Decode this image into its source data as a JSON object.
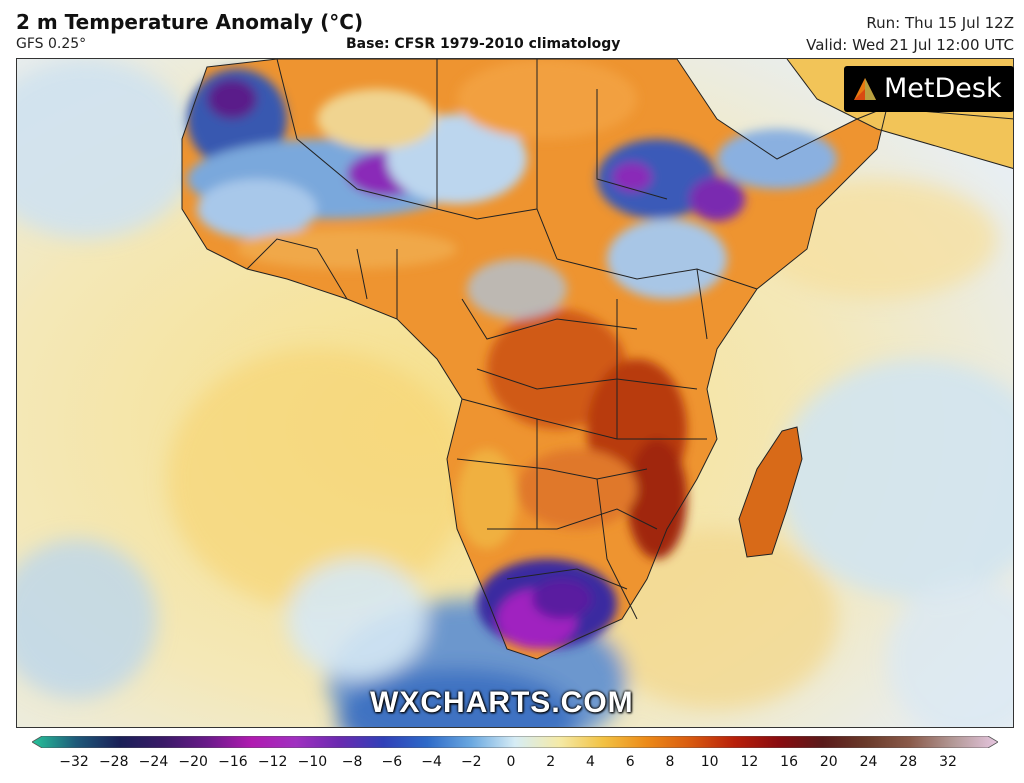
{
  "header": {
    "title": "2 m Temperature Anomaly (°C)",
    "model": "GFS 0.25°",
    "base": "Base: CFSR 1979-2010 climatology",
    "run": "Run: Thu 15 Jul 12Z",
    "valid": "Valid: Wed 21 Jul 12:00 UTC"
  },
  "branding": {
    "logo_text": "MetDesk",
    "watermark": "WXCHARTS.COM"
  },
  "colorbar": {
    "ticks": [
      "−32",
      "−28",
      "−24",
      "−20",
      "−16",
      "−12",
      "−10",
      "−8",
      "−6",
      "−4",
      "−2",
      "0",
      "2",
      "4",
      "6",
      "8",
      "10",
      "12",
      "16",
      "20",
      "24",
      "28",
      "32"
    ],
    "colors": [
      "#27c49a",
      "#1e5a7a",
      "#1a2058",
      "#3a1a68",
      "#6a1a8a",
      "#b01ab0",
      "#a030c0",
      "#6a2ab0",
      "#3040b8",
      "#2e6ac8",
      "#6aa8e0",
      "#d6ecf5",
      "#f4eaa8",
      "#f2c244",
      "#ec8a18",
      "#d85a10",
      "#b8200a",
      "#8a0c10",
      "#5a1a1a",
      "#6a3a2a",
      "#8a5a4a",
      "#b49a98",
      "#e6c6e0"
    ]
  },
  "map": {
    "ocean_color": "#f4e6a8",
    "cold_color": "#2e5aa8",
    "very_cold_color": "#8a1ab8",
    "warm_color": "#ec8a18",
    "hot_color": "#b8280a"
  }
}
